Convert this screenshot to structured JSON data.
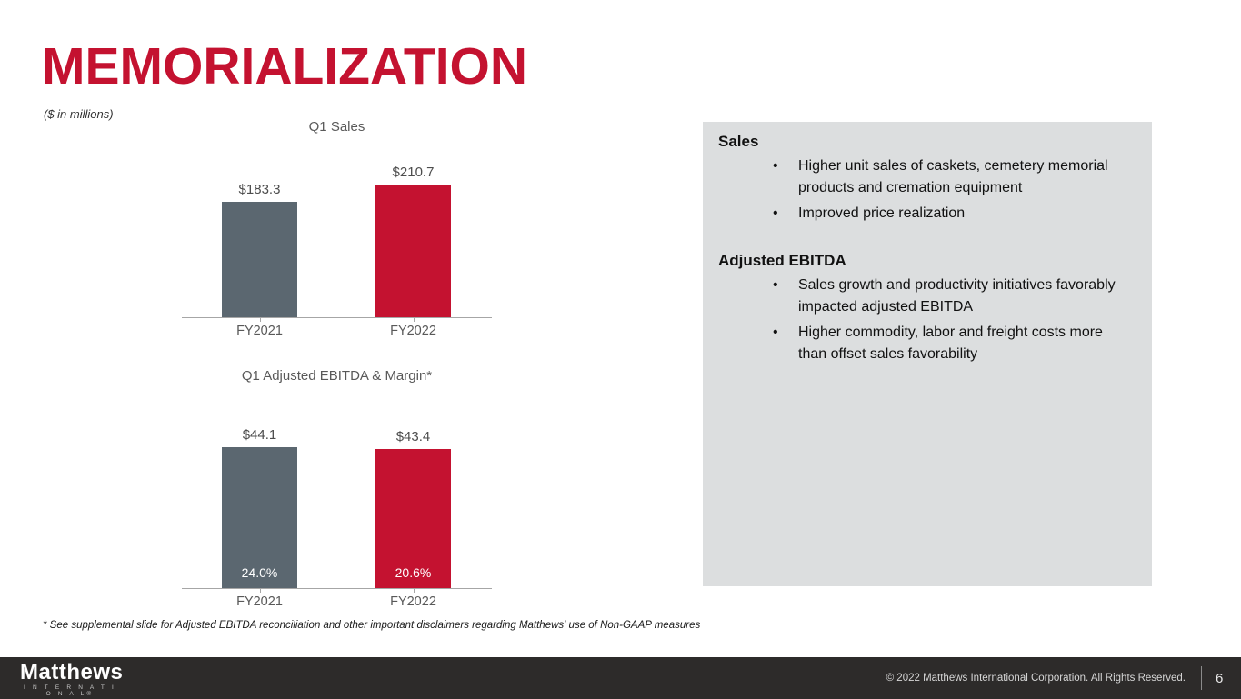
{
  "slide": {
    "title": "MEMORIALIZATION",
    "units_note": "($ in millions)",
    "footnote": "* See supplemental slide for Adjusted EBITDA reconciliation and other important disclaimers regarding Matthews' use of Non-GAAP measures"
  },
  "colors": {
    "accent_red": "#C41230",
    "bar_gray": "#5B6770",
    "panel_gray": "#DCDEDF",
    "chart_text_gray": "#595959",
    "footer_bg": "#2D2B2A"
  },
  "chart_data": [
    {
      "type": "bar",
      "title": "Q1 Sales",
      "categories": [
        "FY2021",
        "FY2022"
      ],
      "values": [
        183.3,
        210.7
      ],
      "value_labels": [
        "$183.3",
        "$210.7"
      ],
      "bar_colors": [
        "#5B6770",
        "#C41230"
      ],
      "ylim": [
        0,
        210.7
      ],
      "grid": false,
      "legend": "none"
    },
    {
      "type": "bar",
      "title": "Q1 Adjusted EBITDA & Margin*",
      "categories": [
        "FY2021",
        "FY2022"
      ],
      "values": [
        44.1,
        43.4
      ],
      "value_labels": [
        "$44.1",
        "$43.4"
      ],
      "margin_labels": [
        "24.0%",
        "20.6%"
      ],
      "bar_colors": [
        "#5B6770",
        "#C41230"
      ],
      "ylim": [
        0,
        44.1
      ],
      "grid": false,
      "legend": "none"
    }
  ],
  "panel": {
    "sections": [
      {
        "heading": "Sales",
        "bullets": [
          "Higher unit sales of caskets, cemetery memorial products and cremation equipment",
          "Improved price realization"
        ]
      },
      {
        "heading": "Adjusted EBITDA",
        "bullets": [
          "Sales growth and productivity initiatives favorably impacted adjusted EBITDA",
          "Higher commodity, labor and freight costs more than offset sales favorability"
        ]
      }
    ]
  },
  "footer": {
    "logo_primary": "Matthews",
    "logo_secondary": "I N T E R N A T I O N A L®",
    "copyright": "© 2022 Matthews International Corporation. All Rights Reserved.",
    "page_number": "6"
  }
}
